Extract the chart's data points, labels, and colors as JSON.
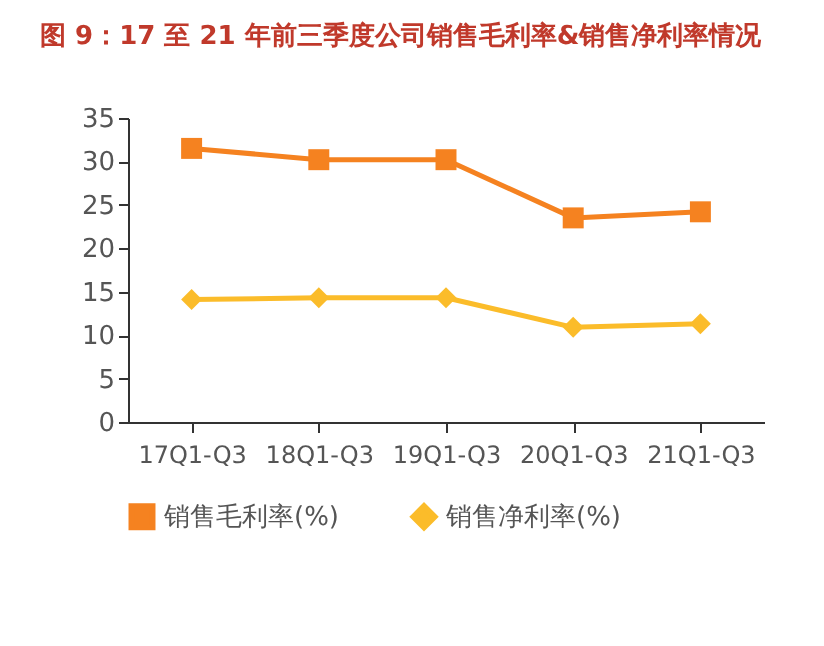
{
  "chart_data": {
    "type": "line",
    "title": "图 9：17 至 21 年前三季度公司销售毛利率&销售净利率情况",
    "categories": [
      "17Q1-Q3",
      "18Q1-Q3",
      "19Q1-Q3",
      "20Q1-Q3",
      "21Q1-Q3"
    ],
    "series": [
      {
        "name": "销售毛利率(%)",
        "color": "#f58220",
        "marker": "square",
        "values": [
          31.5,
          30.2,
          30.2,
          23.5,
          24.2
        ]
      },
      {
        "name": "销售净利率(%)",
        "color": "#fbbc2a",
        "marker": "diamond",
        "values": [
          14.1,
          14.3,
          14.3,
          10.9,
          11.3
        ]
      }
    ],
    "ylim": [
      0,
      35
    ],
    "yticks": [
      0,
      5,
      10,
      15,
      20,
      25,
      30,
      35
    ],
    "grid": false,
    "legend": "bottom",
    "line_style": "solid"
  }
}
